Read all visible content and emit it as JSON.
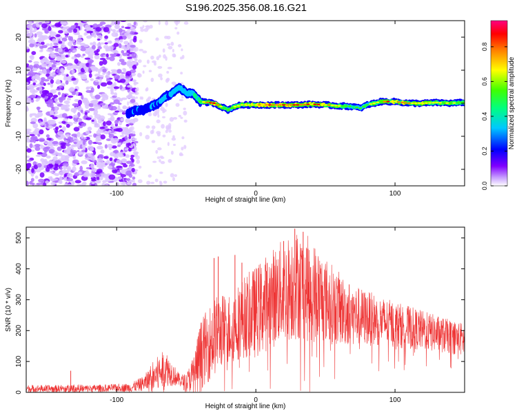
{
  "title": "S196.2025.356.08.16.G21",
  "chart_data": [
    {
      "type": "heatmap",
      "xlabel": "Height of straight line (km)",
      "ylabel": "Frequency (Hz)",
      "xlim": [
        -165,
        150
      ],
      "ylim": [
        -25,
        25
      ],
      "x_ticks": [
        -100,
        0,
        100
      ],
      "y_ticks": [
        -20,
        -10,
        0,
        10,
        20
      ],
      "colorbar": {
        "label": "Normalized spectral amplitude",
        "range": [
          0,
          0.95
        ],
        "ticks": [
          0.0,
          0.2,
          0.4,
          0.6,
          0.8
        ]
      },
      "ridge": {
        "description_points": [
          [
            -90,
            -3
          ],
          [
            -85,
            -2
          ],
          [
            -80,
            -2
          ],
          [
            -75,
            -1
          ],
          [
            -70,
            0
          ],
          [
            -65,
            2
          ],
          [
            -60,
            3
          ],
          [
            -55,
            5
          ],
          [
            -50,
            3
          ],
          [
            -45,
            3
          ],
          [
            -40,
            0.5
          ],
          [
            -30,
            0
          ],
          [
            -25,
            -1
          ],
          [
            -20,
            -2
          ],
          [
            -15,
            -1
          ],
          [
            -10,
            -0.5
          ],
          [
            0,
            -0.5
          ],
          [
            10,
            -0.5
          ],
          [
            20,
            -0.5
          ],
          [
            30,
            -0.5
          ],
          [
            40,
            -0.3
          ],
          [
            50,
            -0.5
          ],
          [
            60,
            -0.8
          ],
          [
            70,
            -1
          ],
          [
            75,
            -1.5
          ],
          [
            80,
            -0.5
          ],
          [
            90,
            0.5
          ],
          [
            100,
            0.5
          ],
          [
            110,
            0
          ],
          [
            120,
            0
          ],
          [
            130,
            0.2
          ],
          [
            140,
            0
          ],
          [
            150,
            0.3
          ]
        ],
        "amplitude": [
          [
            -90,
            0.25
          ],
          [
            -60,
            0.35
          ],
          [
            -45,
            0.45
          ],
          [
            -30,
            0.8
          ],
          [
            -20,
            0.55
          ],
          [
            0,
            0.75
          ],
          [
            30,
            0.8
          ],
          [
            50,
            0.7
          ],
          [
            75,
            0.45
          ],
          [
            95,
            0.75
          ],
          [
            120,
            0.7
          ],
          [
            150,
            0.55
          ]
        ],
        "noise_region_x": [
          -165,
          -90
        ]
      },
      "grid": false
    },
    {
      "type": "line",
      "xlabel": "Height of straight line (km)",
      "ylabel": "SNR (10 * v/v)",
      "xlim": [
        -165,
        150
      ],
      "ylim": [
        0,
        535
      ],
      "x_ticks": [
        -100,
        0,
        100
      ],
      "y_ticks": [
        0,
        100,
        200,
        300,
        400,
        500
      ],
      "color": "#ee3333",
      "envelope": {
        "x": [
          -165,
          -140,
          -130,
          -120,
          -100,
          -90,
          -80,
          -75,
          -70,
          -65,
          -60,
          -55,
          -50,
          -45,
          -40,
          -35,
          -30,
          -25,
          -20,
          -15,
          -10,
          -5,
          0,
          10,
          20,
          30,
          40,
          50,
          60,
          70,
          80,
          90,
          100,
          110,
          120,
          130,
          140,
          150
        ],
        "base": [
          12,
          12,
          12,
          12,
          15,
          15,
          30,
          45,
          60,
          80,
          60,
          40,
          30,
          60,
          120,
          150,
          180,
          200,
          200,
          220,
          240,
          250,
          260,
          300,
          330,
          350,
          330,
          300,
          270,
          250,
          240,
          230,
          220,
          210,
          200,
          190,
          180,
          170
        ],
        "amp": [
          12,
          12,
          15,
          12,
          12,
          15,
          25,
          50,
          60,
          60,
          40,
          20,
          30,
          60,
          110,
          120,
          130,
          120,
          120,
          120,
          130,
          140,
          150,
          160,
          170,
          180,
          170,
          140,
          120,
          100,
          90,
          80,
          75,
          70,
          65,
          60,
          55,
          55
        ]
      },
      "spikes": [
        {
          "x": -133,
          "y": 70
        },
        {
          "x": -30,
          "y": 435
        },
        {
          "x": -27,
          "y": 440
        },
        {
          "x": -15,
          "y": 445
        },
        {
          "x": -10,
          "y": 420
        },
        {
          "x": 20,
          "y": 490
        },
        {
          "x": 28,
          "y": 530
        },
        {
          "x": 34,
          "y": 520
        }
      ],
      "grid": false
    }
  ]
}
